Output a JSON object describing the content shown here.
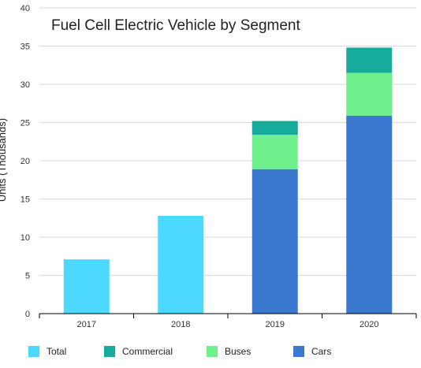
{
  "chart_data": {
    "type": "bar",
    "stacked": true,
    "title": "Fuel Cell Electric Vehicle by Segment",
    "ylabel": "Units (Thousands)",
    "xlabel": "",
    "categories": [
      "2017",
      "2018",
      "2019",
      "2020"
    ],
    "ylim": [
      0,
      40
    ],
    "yticks": [
      0,
      5,
      10,
      15,
      20,
      25,
      30,
      35,
      40
    ],
    "grid": true,
    "legend_position": "bottom",
    "series": [
      {
        "name": "Total",
        "color": "#4dd8ff",
        "values": [
          7.1,
          12.8,
          null,
          null
        ]
      },
      {
        "name": "Cars",
        "color": "#3b79d0",
        "values": [
          null,
          null,
          18.9,
          25.9
        ]
      },
      {
        "name": "Buses",
        "color": "#6ef08c",
        "values": [
          null,
          null,
          4.5,
          5.6
        ]
      },
      {
        "name": "Commercial",
        "color": "#16ab9d",
        "values": [
          null,
          null,
          1.8,
          3.3
        ]
      }
    ],
    "legend_order": [
      "Total",
      "Commercial",
      "Buses",
      "Cars"
    ]
  }
}
